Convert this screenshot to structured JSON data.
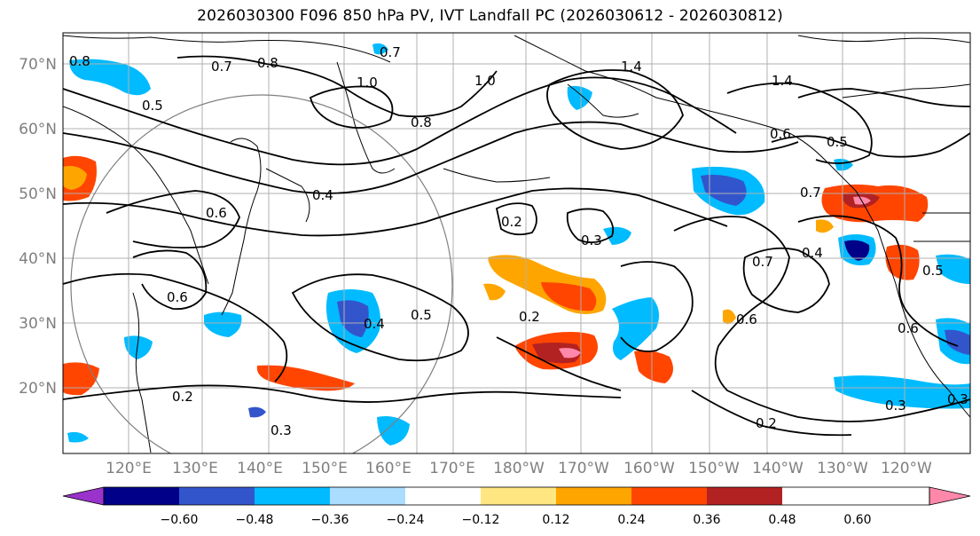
{
  "title": "2026030300 F096 850 hPa PV, IVT Landfall PC (2026030612 - 2026030812)",
  "lat_labels": [
    "70°N",
    "60°N",
    "50°N",
    "40°N",
    "30°N",
    "20°N"
  ],
  "lon_labels": [
    "120°E",
    "130°E",
    "140°E",
    "150°E",
    "160°E",
    "170°E",
    "180°W",
    "170°W",
    "160°W",
    "150°W",
    "140°W",
    "130°W",
    "120°W"
  ],
  "contour_labels": [
    "0.8",
    "0.7",
    "0.8",
    "0.7",
    "1.0",
    "1.0",
    "1.4",
    "1.4",
    "0.8",
    "0.6",
    "0.5",
    "0.6",
    "0.7",
    "0.4",
    "0.6",
    "0.5",
    "0.5",
    "0.2",
    "0.3",
    "0.2",
    "0.3",
    "0.4",
    "0.6",
    "0.7",
    "0.6",
    "0.2",
    "0.3",
    "0.2",
    "0.3",
    "0.5",
    "0.4"
  ],
  "colorbar": {
    "colors": [
      "#9933cc",
      "#000088",
      "#3355cc",
      "#00bbff",
      "#aaddff",
      "#ffffff",
      "#ffe680",
      "#ffa500",
      "#ff4500",
      "#b22222",
      "#ff88aa"
    ],
    "tick_labels": [
      "−0.60",
      "−0.48",
      "−0.36",
      "−0.24",
      "−0.12",
      "0.12",
      "0.24",
      "0.36",
      "0.48",
      "0.60"
    ]
  }
}
